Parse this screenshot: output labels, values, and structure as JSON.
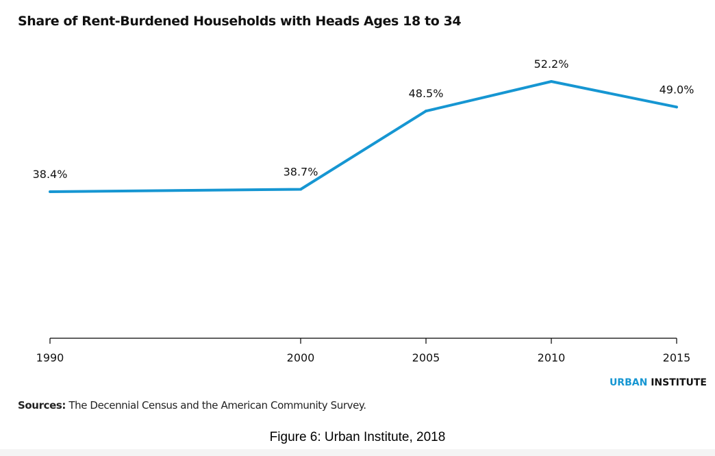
{
  "chart_data": {
    "type": "line",
    "title": "Share of Rent-Burdened Households with Heads Ages 18 to 34",
    "x": [
      "1990",
      "2000",
      "2005",
      "2010",
      "2015"
    ],
    "series": [
      {
        "values": [
          38.4,
          38.7,
          48.5,
          52.2,
          49.0
        ],
        "labels": [
          "38.4%",
          "38.7%",
          "48.5%",
          "52.2%",
          "49.0%"
        ]
      }
    ],
    "line_color": "#1696d2",
    "xlabel": "",
    "ylabel": "",
    "grid": false,
    "legend": "none"
  },
  "brand": {
    "urban": "URBAN",
    "institute": "INSTITUTE",
    "accent_color": "#1696d2"
  },
  "sources": {
    "label": "Sources:",
    "text": "The Decennial Census and the American Community Survey."
  },
  "caption": "Figure 6: Urban Institute, 2018"
}
